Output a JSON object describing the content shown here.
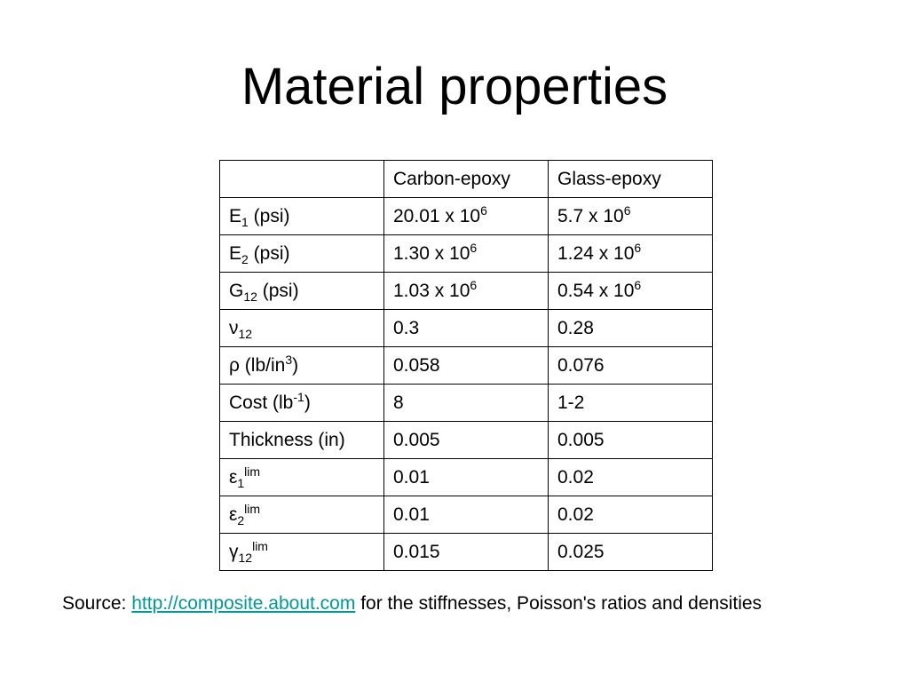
{
  "title": "Material properties",
  "table": {
    "header": [
      "Carbon-epoxy",
      "Glass-epoxy"
    ],
    "rows": [
      [
        [
          "E",
          {
            "sub": "1"
          },
          " (psi)"
        ],
        [
          "20.01 x 10",
          {
            "sup": "6"
          }
        ],
        [
          "5.7 x 10",
          {
            "sup": "6"
          }
        ]
      ],
      [
        [
          "E",
          {
            "sub": "2"
          },
          " (psi)"
        ],
        [
          "1.30 x 10",
          {
            "sup": "6"
          }
        ],
        [
          "1.24 x 10",
          {
            "sup": "6"
          }
        ]
      ],
      [
        [
          "G",
          {
            "sub": "12"
          },
          " (psi)"
        ],
        [
          "1.03 x 10",
          {
            "sup": "6"
          }
        ],
        [
          "0.54 x 10",
          {
            "sup": "6"
          }
        ]
      ],
      [
        [
          "ν",
          {
            "sub": "12"
          }
        ],
        [
          "0.3"
        ],
        [
          "0.28"
        ]
      ],
      [
        [
          "ρ (lb/in",
          {
            "sup": "3"
          },
          ")"
        ],
        [
          "0.058"
        ],
        [
          "0.076"
        ]
      ],
      [
        [
          "Cost (lb",
          {
            "sup": "-1"
          },
          ")"
        ],
        [
          "8"
        ],
        [
          "1-2"
        ]
      ],
      [
        [
          "Thickness (in)"
        ],
        [
          "0.005"
        ],
        [
          "0.005"
        ]
      ],
      [
        [
          "ε",
          {
            "sub": "1"
          },
          {
            "sup": "lim"
          }
        ],
        [
          "0.01"
        ],
        [
          "0.02"
        ]
      ],
      [
        [
          "ε",
          {
            "sub": "2"
          },
          {
            "sup": "lim"
          }
        ],
        [
          "0.01"
        ],
        [
          "0.02"
        ]
      ],
      [
        [
          "γ",
          {
            "sub": "12"
          },
          {
            "sup": "lim"
          }
        ],
        [
          "0.015"
        ],
        [
          "0.025"
        ]
      ]
    ]
  },
  "source": {
    "prefix": "Source: ",
    "link": "http://composite.about.com",
    "suffix": " for the stiffnesses, Poisson's ratios and densities"
  }
}
